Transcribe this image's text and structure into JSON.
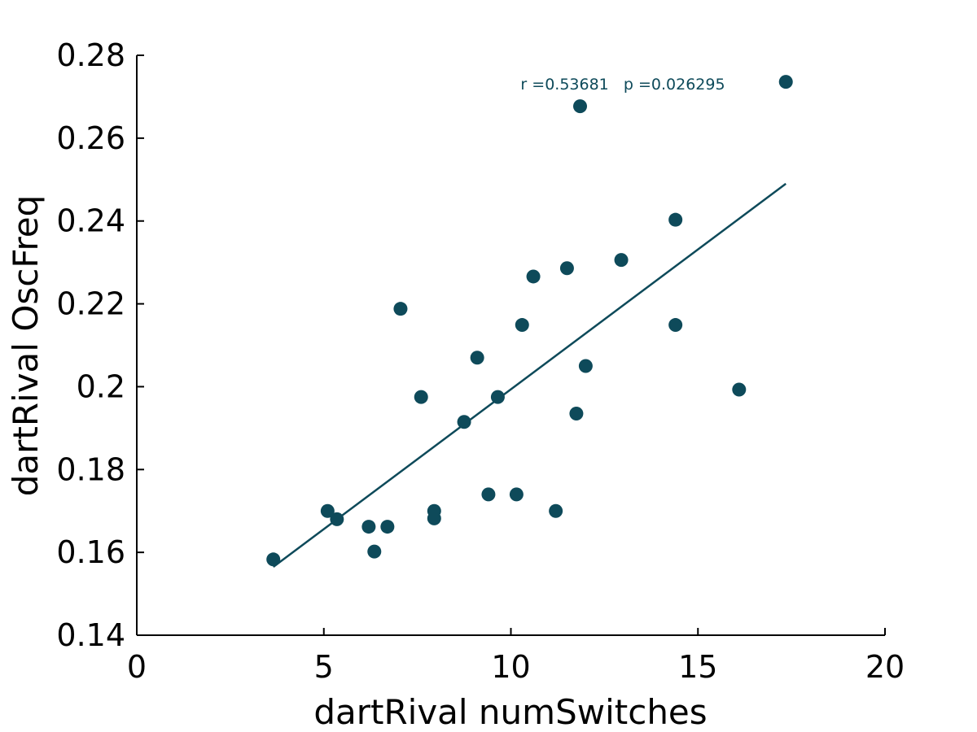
{
  "chart_data": {
    "type": "scatter",
    "title": "",
    "xlabel": "dartRival numSwitches",
    "ylabel": "dartRival OscFreq",
    "xlim": [
      0,
      20
    ],
    "ylim": [
      0.14,
      0.28
    ],
    "x_ticks": [
      "0",
      "5",
      "10",
      "15",
      "20"
    ],
    "y_ticks": [
      "0.14",
      "0.16",
      "0.18",
      "0.2",
      "0.22",
      "0.24",
      "0.26",
      "0.28"
    ],
    "grid": false,
    "color": "#0e4a5a",
    "annotation": "r =0.53681   p =0.026295",
    "points": [
      {
        "x": 3.65,
        "y": 0.1583
      },
      {
        "x": 5.1,
        "y": 0.17
      },
      {
        "x": 5.35,
        "y": 0.168
      },
      {
        "x": 6.2,
        "y": 0.1662
      },
      {
        "x": 6.35,
        "y": 0.1602
      },
      {
        "x": 6.7,
        "y": 0.1662
      },
      {
        "x": 7.05,
        "y": 0.2188
      },
      {
        "x": 7.6,
        "y": 0.1975
      },
      {
        "x": 7.95,
        "y": 0.17
      },
      {
        "x": 7.95,
        "y": 0.1682
      },
      {
        "x": 8.75,
        "y": 0.1915
      },
      {
        "x": 9.1,
        "y": 0.207
      },
      {
        "x": 9.4,
        "y": 0.174
      },
      {
        "x": 9.65,
        "y": 0.1975
      },
      {
        "x": 10.15,
        "y": 0.174
      },
      {
        "x": 10.3,
        "y": 0.2149
      },
      {
        "x": 10.6,
        "y": 0.2266
      },
      {
        "x": 11.2,
        "y": 0.17
      },
      {
        "x": 11.5,
        "y": 0.2286
      },
      {
        "x": 11.75,
        "y": 0.1935
      },
      {
        "x": 11.85,
        "y": 0.2677
      },
      {
        "x": 12.0,
        "y": 0.205
      },
      {
        "x": 12.95,
        "y": 0.2306
      },
      {
        "x": 14.4,
        "y": 0.2403
      },
      {
        "x": 14.4,
        "y": 0.2149
      },
      {
        "x": 16.1,
        "y": 0.1993
      },
      {
        "x": 17.35,
        "y": 0.2736
      }
    ],
    "fit_line": {
      "x": [
        3.65,
        17.35
      ],
      "y": [
        0.1565,
        0.249
      ]
    }
  }
}
